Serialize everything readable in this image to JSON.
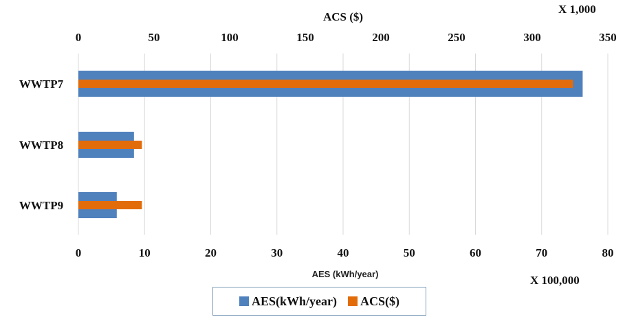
{
  "chart_data": {
    "type": "bar",
    "orientation": "horizontal",
    "categories": [
      "WWTP7",
      "WWTP8",
      "WWTP9"
    ],
    "series": [
      {
        "name": "AES(kWh/year)",
        "axis": "bottom",
        "values": [
          76.2,
          8.4,
          5.8
        ],
        "color": "#4f81bd"
      },
      {
        "name": "ACS($)",
        "axis": "top",
        "values": [
          327,
          42,
          42
        ],
        "color": "#e36c0a"
      }
    ],
    "bottom_axis": {
      "label": "AES (kWh/year)",
      "range": [
        0,
        80
      ],
      "ticks": [
        0,
        10,
        20,
        30,
        40,
        50,
        60,
        70,
        80
      ],
      "multiplier": "X 100,000"
    },
    "top_axis": {
      "label": "ACS ($)",
      "range": [
        0,
        350
      ],
      "ticks": [
        0,
        50,
        100,
        150,
        200,
        250,
        300,
        350
      ],
      "multiplier": "X 1,000"
    },
    "grid": true,
    "legend_position": "bottom"
  },
  "colors": {
    "aes": "#4f81bd",
    "acs": "#e36c0a",
    "grid": "#d9d9d9"
  }
}
